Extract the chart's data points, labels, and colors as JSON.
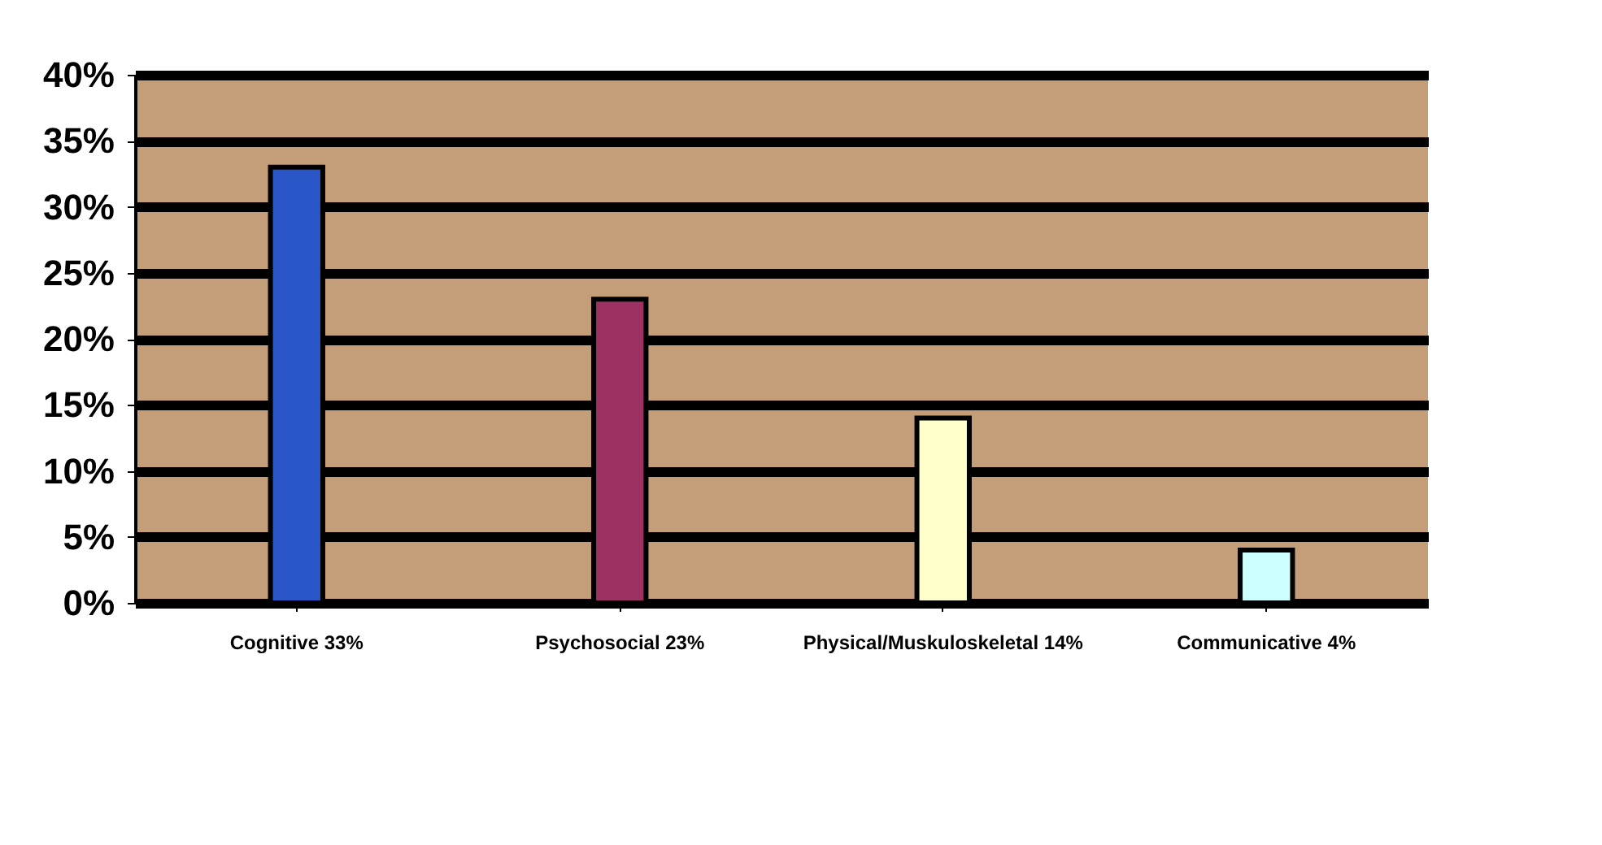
{
  "chart_data": {
    "type": "bar",
    "categories": [
      "Cognitive 33%",
      "Psychosocial 23%",
      "Physical/Muskuloskeletal 14%",
      "Communicative 4%"
    ],
    "values": [
      33,
      23,
      14,
      4
    ],
    "colors": [
      "#2a56c8",
      "#9b3262",
      "#ffffcc",
      "#ccffff"
    ],
    "ylim": [
      0,
      40
    ],
    "yticks": [
      {
        "value": 0,
        "label": "0%"
      },
      {
        "value": 5,
        "label": "5%"
      },
      {
        "value": 10,
        "label": "10%"
      },
      {
        "value": 15,
        "label": "15%"
      },
      {
        "value": 20,
        "label": "20%"
      },
      {
        "value": 25,
        "label": "25%"
      },
      {
        "value": 30,
        "label": "30%"
      },
      {
        "value": 35,
        "label": "35%"
      },
      {
        "value": 40,
        "label": "40%"
      }
    ],
    "grid": "y"
  }
}
